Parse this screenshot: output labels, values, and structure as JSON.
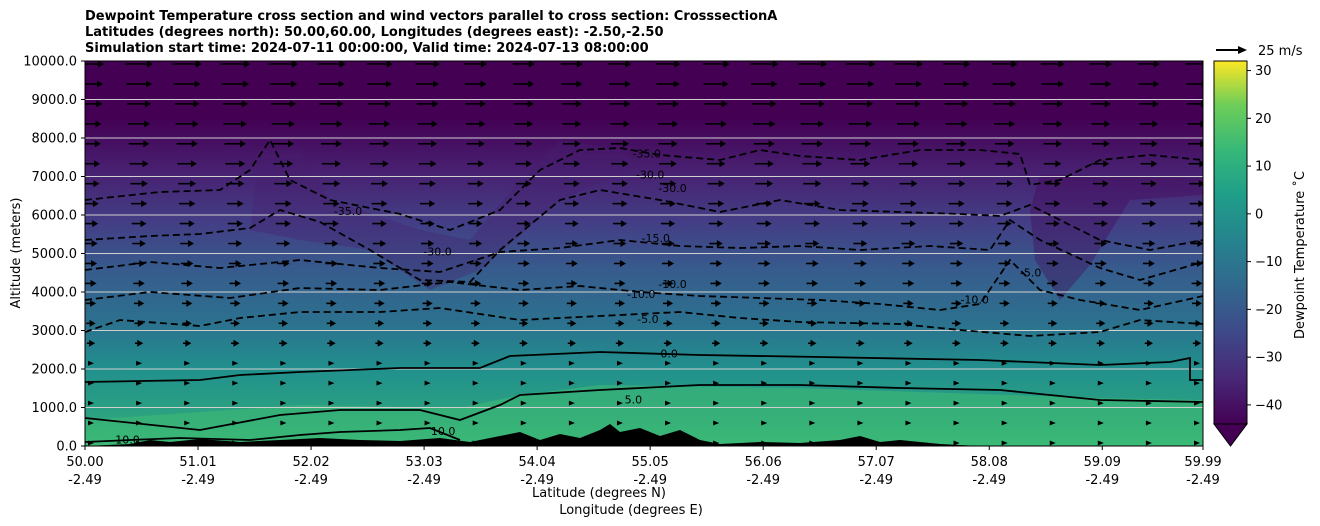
{
  "chart_data": {
    "type": "heatmap",
    "title": [
      "Dewpoint Temperature cross section and wind vectors parallel to cross section: CrosssectionA",
      "Latitudes (degrees north): 50.00,60.00, Longitudes (degrees east): -2.50,-2.50",
      "Simulation start time: 2024-07-11 00:00:00, Valid time: 2024-07-13 08:00:00"
    ],
    "xlabel": "Latitude (degrees N)",
    "xlabel2": "Longitude (degrees E)",
    "ylabel": "Altitude (meters)",
    "x_ticks": [
      {
        "lat": "50.00",
        "lon": "-2.49"
      },
      {
        "lat": "51.01",
        "lon": "-2.49"
      },
      {
        "lat": "52.02",
        "lon": "-2.49"
      },
      {
        "lat": "53.03",
        "lon": "-2.49"
      },
      {
        "lat": "54.04",
        "lon": "-2.49"
      },
      {
        "lat": "55.05",
        "lon": "-2.49"
      },
      {
        "lat": "56.06",
        "lon": "-2.49"
      },
      {
        "lat": "57.07",
        "lon": "-2.49"
      },
      {
        "lat": "58.08",
        "lon": "-2.49"
      },
      {
        "lat": "59.09",
        "lon": "-2.49"
      },
      {
        "lat": "59.99",
        "lon": "-2.49"
      }
    ],
    "xlim": [
      50.0,
      59.99
    ],
    "ylim": [
      0,
      10000
    ],
    "y_ticks": [
      "0.0",
      "1000.0",
      "2000.0",
      "3000.0",
      "4000.0",
      "5000.0",
      "6000.0",
      "7000.0",
      "8000.0",
      "9000.0",
      "10000.0"
    ],
    "grid": "horizontal",
    "colorbar": {
      "label": "Dewpoint Temperature ˚C",
      "min": -44,
      "max": 32,
      "ticks": [
        "30",
        "20",
        "10",
        "0",
        "−10",
        "−20",
        "−30",
        "−40"
      ],
      "tick_values": [
        30,
        20,
        10,
        0,
        -10,
        -20,
        -30,
        -40
      ],
      "extend": "min",
      "colormap": "viridis"
    },
    "quiver_key": "25 m/s",
    "contour_levels": [
      10,
      5,
      0,
      -5,
      -10,
      -15,
      -30,
      -35
    ],
    "contour_labels": [
      {
        "text": "0.0",
        "lat": 55.22,
        "alt": 2300
      },
      {
        "text": "5.0",
        "lat": 54.9,
        "alt": 1100
      },
      {
        "text": "10.0",
        "lat": 50.38,
        "alt": 70
      },
      {
        "text": "10.0",
        "lat": 53.2,
        "alt": 280
      },
      {
        "text": "-5.0",
        "lat": 55.03,
        "alt": 3200
      },
      {
        "text": "-10.0",
        "lat": 54.97,
        "alt": 3850
      },
      {
        "text": "-10.0",
        "lat": 55.25,
        "alt": 4100
      },
      {
        "text": "-15.0",
        "lat": 55.1,
        "alt": 5300
      },
      {
        "text": "-30.0",
        "lat": 53.15,
        "alt": 4950
      },
      {
        "text": "-35.0",
        "lat": 52.35,
        "alt": 6000
      },
      {
        "text": "-35.0",
        "lat": 55.02,
        "alt": 7500
      },
      {
        "text": "-30.0",
        "lat": 55.05,
        "alt": 6950
      },
      {
        "text": "-30.0",
        "lat": 55.25,
        "alt": 6600
      },
      {
        "text": "-5.0",
        "lat": 58.45,
        "alt": 4400
      },
      {
        "text": "-10.0",
        "lat": 57.95,
        "alt": 3700
      }
    ],
    "terrain": "black"
  }
}
